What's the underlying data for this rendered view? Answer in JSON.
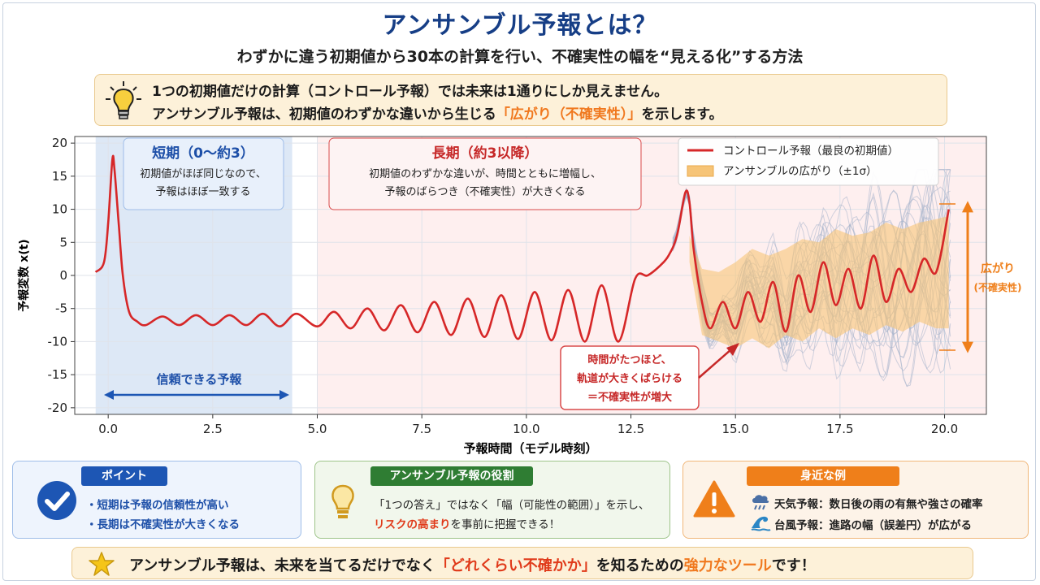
{
  "header": {
    "title": "アンサンブル予報とは？",
    "subtitle": "わずかに違う初期値から30本の計算を行い、不確実性の幅を“見える化”する方法"
  },
  "intro": {
    "line1": "1つの初期値だけの計算（コントロール予報）では未来は1通りにしか見えません。",
    "line2_pre": "アンサンブル予報は、初期値のわずかな違いから生じる",
    "line2_highlight": "「広がり（不確実性）」",
    "line2_post": "を示します。"
  },
  "chart_data": {
    "type": "line",
    "xlabel": "予報時間（モデル時刻）",
    "ylabel": "予報変数 x(t)",
    "xlim": [
      -0.8,
      21
    ],
    "ylim": [
      -21,
      21
    ],
    "xticks": [
      "0.0",
      "2.5",
      "5.0",
      "7.5",
      "10.0",
      "12.5",
      "15.0",
      "17.5",
      "20.0"
    ],
    "yticks": [
      "20",
      "15",
      "10",
      "5",
      "0",
      "-5",
      "-10",
      "-15",
      "-20"
    ],
    "legend": {
      "placement": "top-right",
      "control": "コントロール予報（最良の初期値）",
      "spread": "アンサンブルの広がり（±1σ）"
    },
    "colors": {
      "control": "#d62728",
      "band": "#f6c477",
      "members": "#a7b4cc",
      "short_bg": "#dde8f6",
      "long_bg": "#fdeaea"
    },
    "regions": [
      {
        "name": "short",
        "x_range": [
          -0.3,
          4.4
        ]
      },
      {
        "name": "long",
        "x_range": [
          5.0,
          21
        ]
      }
    ],
    "control_series": {
      "name": "コントロール予報（最良の初期値）",
      "x": [
        -0.3,
        -0.1,
        0.0,
        0.1,
        0.15,
        0.25,
        0.35,
        0.5,
        0.7,
        0.9,
        1.3,
        1.7,
        2.1,
        2.5,
        2.9,
        3.3,
        3.7,
        4.1,
        4.5,
        5.0,
        5.4,
        5.8,
        6.2,
        6.6,
        7.0,
        7.4,
        7.8,
        8.2,
        8.6,
        9.0,
        9.4,
        9.8,
        10.2,
        10.6,
        11.0,
        11.4,
        11.8,
        12.2,
        12.6,
        12.9,
        13.2,
        13.4,
        13.6,
        13.8,
        13.9,
        14.0,
        14.2,
        14.4,
        14.7,
        15.0,
        15.3,
        15.6,
        15.9,
        16.2,
        16.5,
        16.8,
        17.1,
        17.4,
        17.7,
        18.0,
        18.3,
        18.6,
        18.9,
        19.2,
        19.5,
        19.8,
        20.1
      ],
      "y": [
        0.5,
        2,
        8,
        17.5,
        16,
        8,
        0,
        -5.5,
        -7,
        -7.5,
        -6.2,
        -7.5,
        -6,
        -7.5,
        -6,
        -7.5,
        -5.8,
        -7.7,
        -5.8,
        -7.7,
        -5.5,
        -8,
        -5,
        -8.3,
        -4.5,
        -8.6,
        -4,
        -9,
        -3.5,
        -9.3,
        -3,
        -9.6,
        -2.5,
        -9.8,
        -2.2,
        -10,
        -1.5,
        -10,
        -0.5,
        0,
        1.5,
        3,
        6,
        12.5,
        11,
        4,
        -4,
        -8,
        -4,
        -8,
        -2.5,
        -7,
        -1,
        -8.5,
        0,
        -5.5,
        2,
        -4.5,
        1,
        -5,
        3,
        -4,
        1,
        -2.5,
        2.5,
        0.5,
        10
      ]
    },
    "band_series": {
      "name": "アンサンブルの広がり（±1σ）",
      "x": [
        13.9,
        14.2,
        14.6,
        15.0,
        15.4,
        15.8,
        16.2,
        16.6,
        17.0,
        17.4,
        17.8,
        18.2,
        18.6,
        19.0,
        19.4,
        19.8,
        20.1
      ],
      "upper": [
        6,
        1,
        0.5,
        2,
        4,
        3,
        4,
        5.5,
        5,
        7,
        6,
        6.5,
        8,
        7,
        8,
        8.5,
        9
      ],
      "lower": [
        2,
        -9,
        -10,
        -11,
        -9.5,
        -11,
        -9,
        -10,
        -8,
        -9.5,
        -8,
        -9,
        -7.5,
        -8.5,
        -7,
        -8,
        -8
      ]
    },
    "members_count": 30,
    "annotations": {
      "short_title": "短期（0〜約3）",
      "short_desc1": "初期値がほぼ同じなので、",
      "short_desc2": "予報はほぼ一致する",
      "reliable": "信頼できる予報",
      "long_title": "長期（約3以降）",
      "long_desc1": "初期値のわずかな違いが、時間とともに増幅し、",
      "long_desc2": "予報のばらつき（不確実性）が大きくなる",
      "callout1": "時間がたつほど、",
      "callout2": "軌道が大きくばらける",
      "callout3": "＝不確実性が増大",
      "spread_label1": "広がり",
      "spread_label2": "(不確実性)"
    }
  },
  "cards": {
    "point": {
      "tag": "ポイント",
      "item1": "・短期は予報の信頼性が高い",
      "item2": "・長期は不確実性が大きくなる"
    },
    "role": {
      "tag": "アンサンブル予報の役割",
      "line1": "「1つの答え」ではなく「幅（可能性の範囲）」を示し、",
      "line2_highlight": "リスクの高まり",
      "line2_post": "を事前に把握できる！"
    },
    "examples": {
      "tag": "身近な例",
      "item1": "天気予報：数日後の雨の有無や強さの確率",
      "item2": "台風予報：進路の幅（誤差円）が広がる"
    }
  },
  "bottom": {
    "pre": "アンサンブル予報は、未来を当てるだけでなく",
    "highlight1": "「どれくらい不確かか」",
    "mid": "を知るための",
    "highlight2": "強力なツール",
    "post": "です！"
  }
}
